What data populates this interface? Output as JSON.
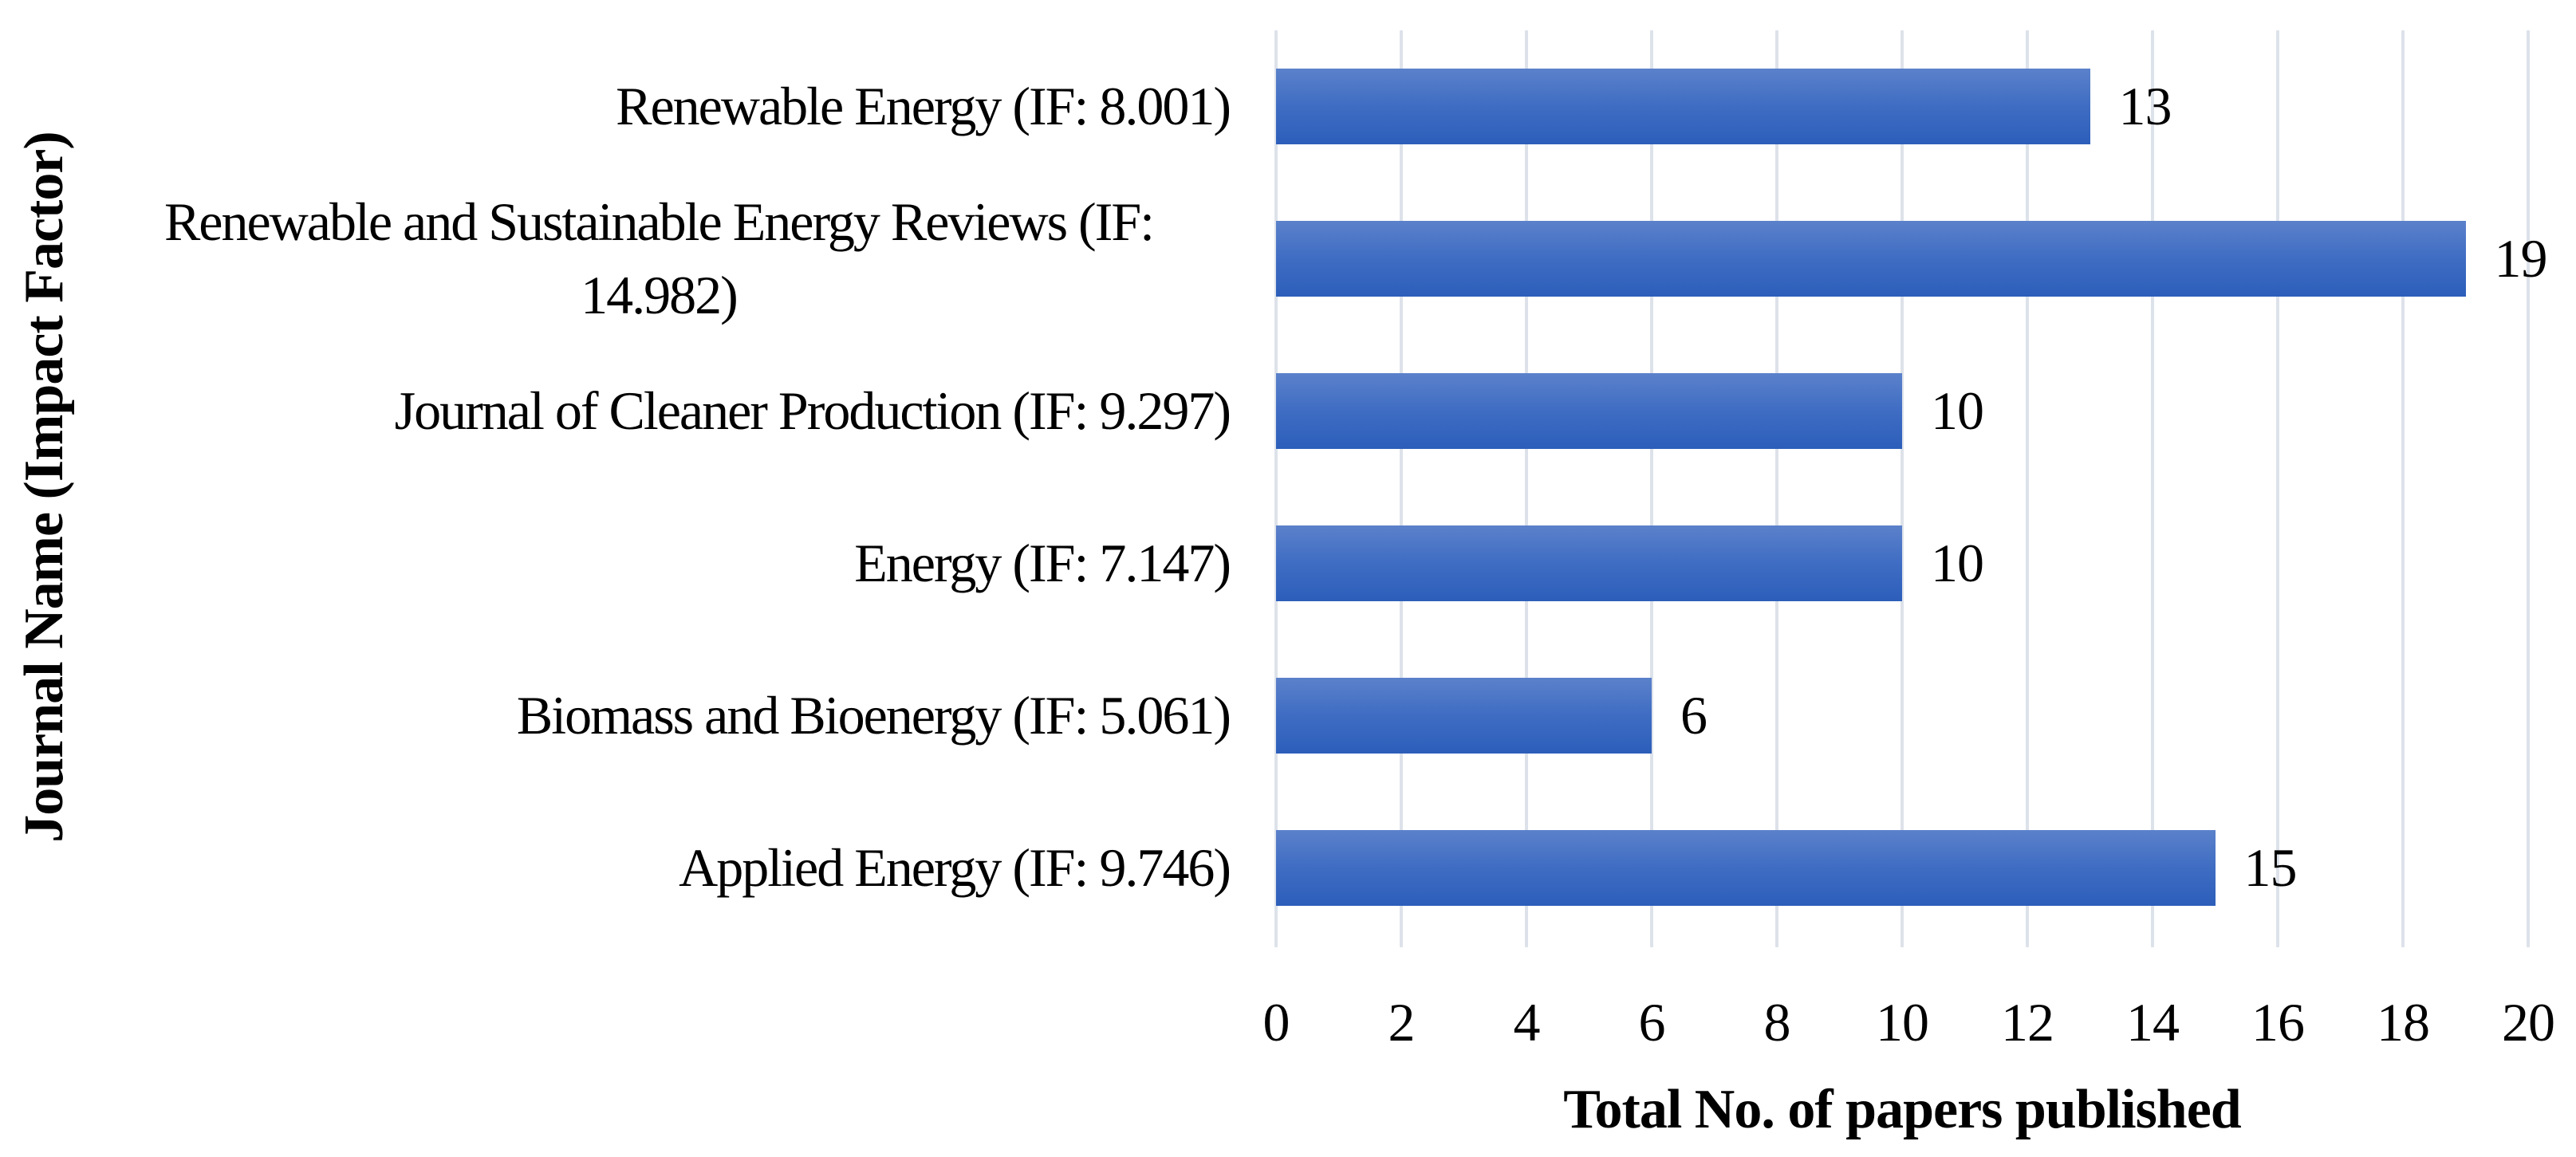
{
  "chart_data": {
    "type": "bar",
    "orientation": "horizontal",
    "title": "",
    "xlabel": "Total No. of papers published",
    "ylabel": "Journal Name (Impact Factor)",
    "categories": [
      "Renewable Energy (IF: 8.001)",
      "Renewable and Sustainable Energy Reviews (IF: 14.982)",
      "Journal of Cleaner Production (IF: 9.297)",
      "Energy (IF: 7.147)",
      "Biomass and Bioenergy (IF: 5.061)",
      "Applied Energy (IF: 9.746)"
    ],
    "values": [
      13,
      19,
      10,
      10,
      6,
      15
    ],
    "data_labels": [
      "13",
      "19",
      "10",
      "10",
      "6",
      "15"
    ],
    "xlim": [
      0,
      20
    ],
    "xticks": [
      0,
      2,
      4,
      6,
      8,
      10,
      12,
      14,
      16,
      18,
      20
    ],
    "grid": "vertical-gridlines-on",
    "legend": "none",
    "colors": {
      "bar_gradient_top": "#5b81ca",
      "bar_gradient_mid": "#3e6cc3",
      "bar_gradient_bottom": "#2c5eba",
      "gridline": "#dde2ea",
      "text": "#000000",
      "background": "#ffffff"
    }
  }
}
